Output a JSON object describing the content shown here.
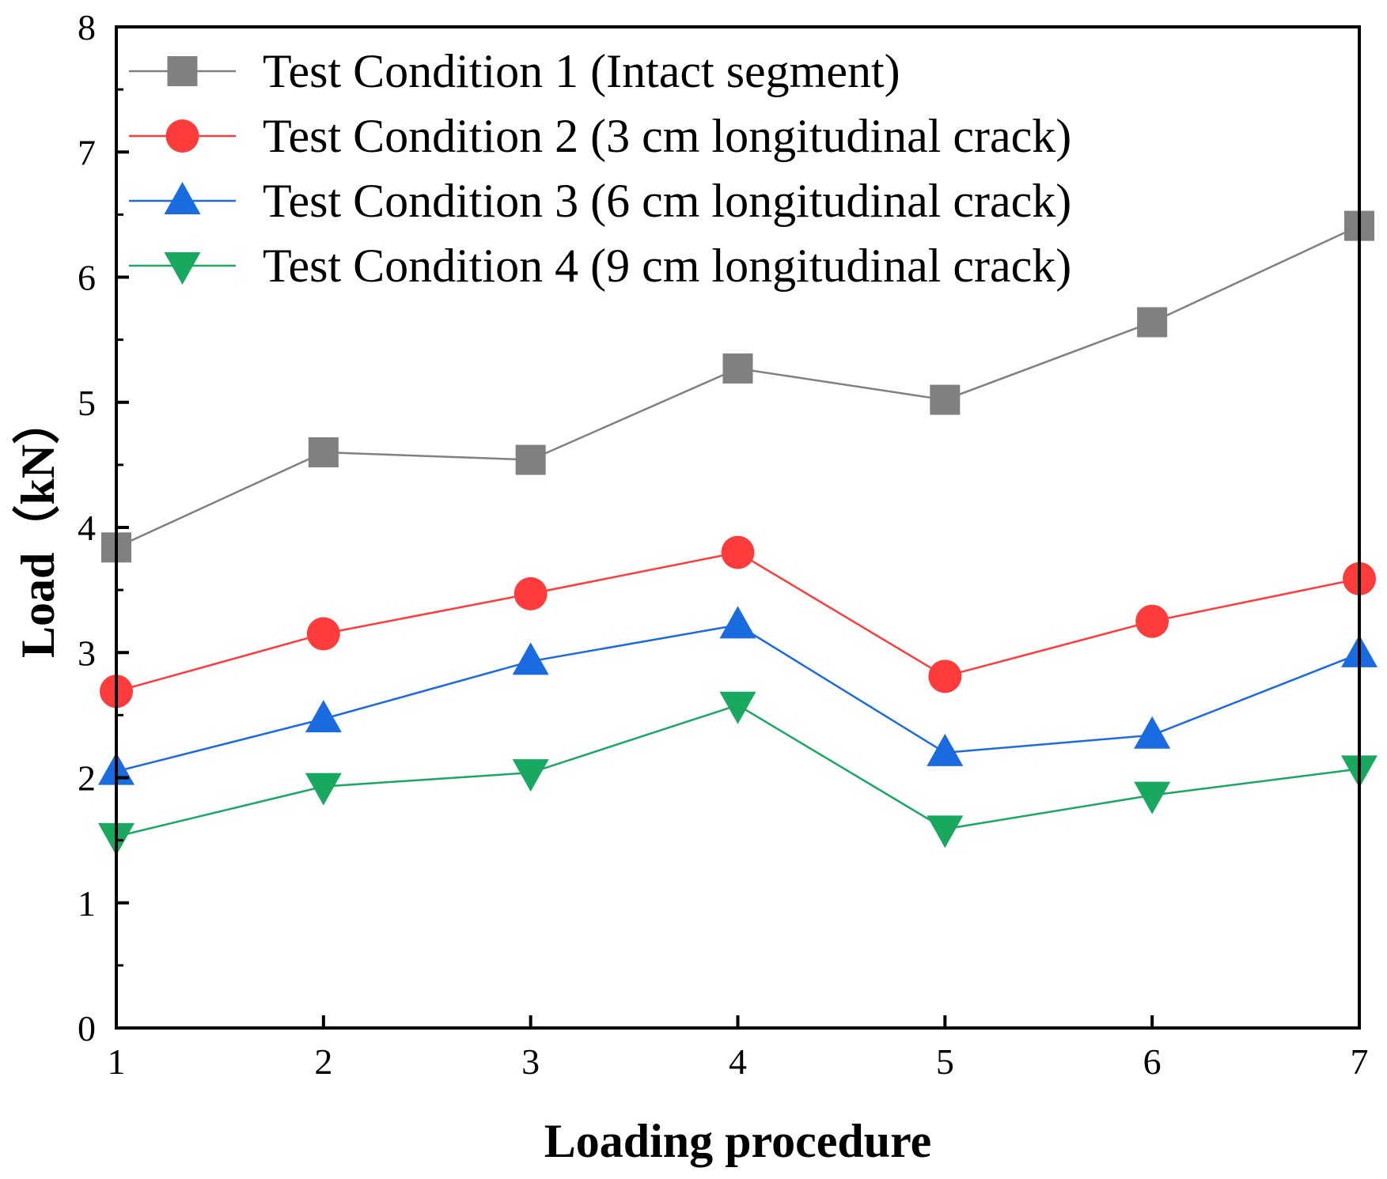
{
  "chart_data": {
    "type": "line",
    "title": "",
    "xlabel": "Loading procedure",
    "ylabel": "Load（kN）",
    "x": [
      1,
      2,
      3,
      4,
      5,
      6,
      7
    ],
    "xlim": [
      1,
      7
    ],
    "ylim": [
      0,
      8
    ],
    "x_ticks": [
      "1",
      "2",
      "3",
      "4",
      "5",
      "6",
      "7"
    ],
    "y_ticks": [
      "0",
      "1",
      "2",
      "3",
      "4",
      "5",
      "6",
      "7",
      "8"
    ],
    "grid": false,
    "legend_position": "top-left",
    "series": [
      {
        "name": "Test Condition 1 (Intact segment)",
        "color": "#808080",
        "marker": "square",
        "values": [
          3.84,
          4.6,
          4.54,
          5.27,
          5.02,
          5.64,
          6.41
        ]
      },
      {
        "name": "Test Condition 2 (3 cm longitudinal crack)",
        "color": "#ff3b3b",
        "marker": "circle",
        "values": [
          2.69,
          3.15,
          3.47,
          3.8,
          2.81,
          3.25,
          3.59
        ]
      },
      {
        "name": "Test Condition 3 (6 cm longitudinal crack)",
        "color": "#1a6be0",
        "marker": "triangle-up",
        "values": [
          2.05,
          2.47,
          2.93,
          3.22,
          2.2,
          2.34,
          2.99
        ]
      },
      {
        "name": "Test Condition 4 (9 cm longitudinal crack)",
        "color": "#18a860",
        "marker": "triangle-down",
        "values": [
          1.53,
          1.93,
          2.04,
          2.58,
          1.59,
          1.86,
          2.07
        ]
      }
    ]
  }
}
